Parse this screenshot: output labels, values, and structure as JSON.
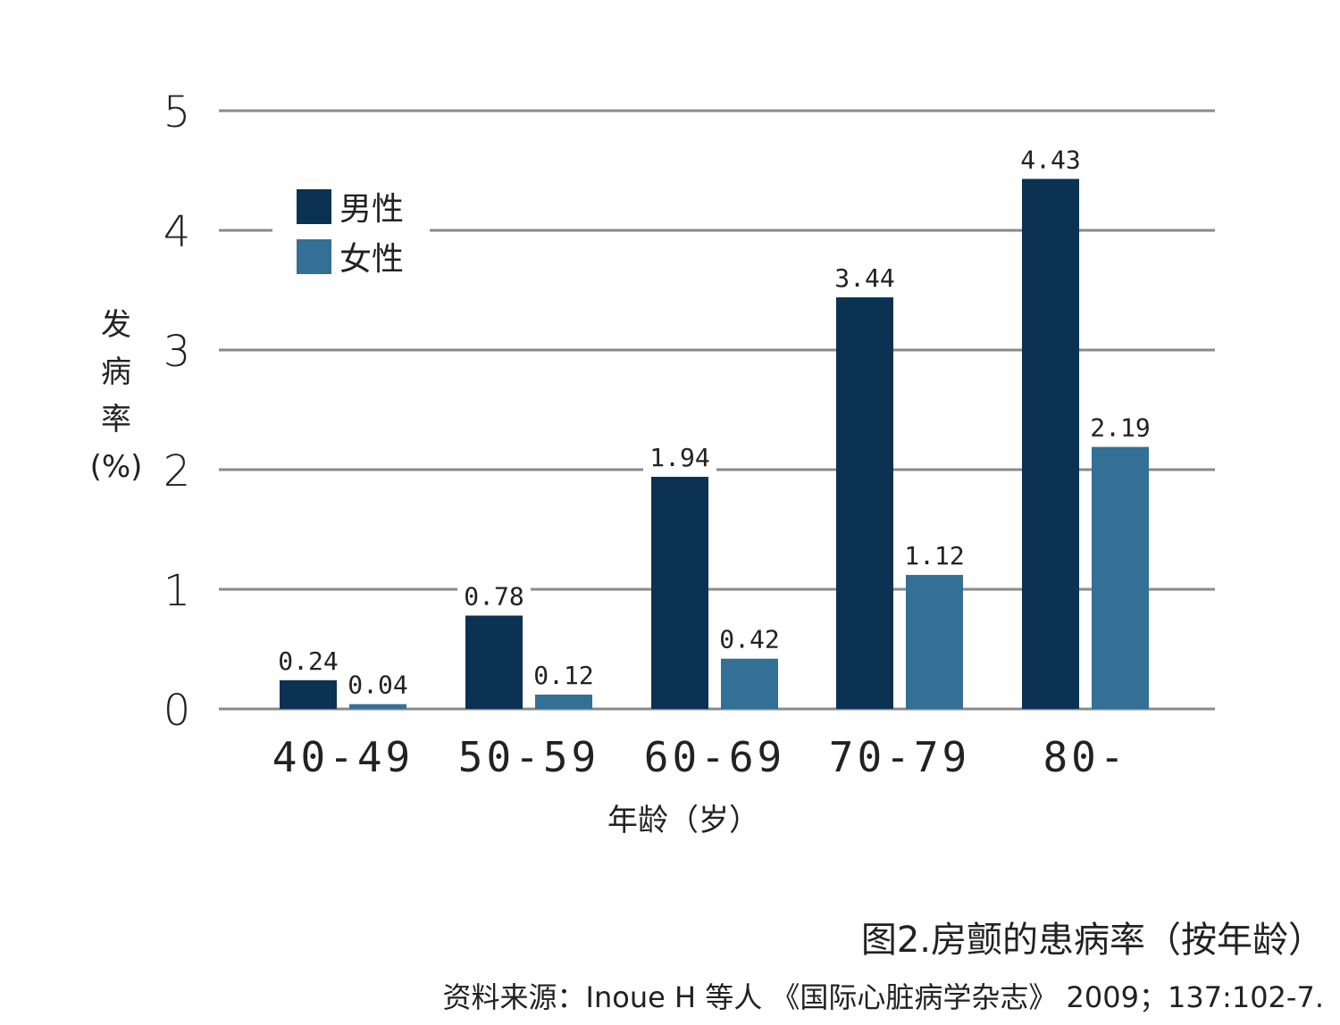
{
  "chart_data": {
    "type": "bar",
    "categories": [
      "40-49",
      "50-59",
      "60-69",
      "70-79",
      "80-"
    ],
    "series": [
      {
        "name": "男性",
        "values": [
          0.24,
          0.78,
          1.94,
          3.44,
          4.43
        ],
        "color": "#0b3253"
      },
      {
        "name": "女性",
        "values": [
          0.04,
          0.12,
          0.42,
          1.12,
          2.19
        ],
        "color": "#346f96"
      }
    ],
    "value_labels": {
      "男性": [
        "0.24",
        "0.78",
        "1.94",
        "3.44",
        "4.43"
      ],
      "女性": [
        "0.04",
        "0.12",
        "0.42",
        "1.12",
        "2.19"
      ]
    },
    "ylim": [
      0,
      5
    ],
    "yticks": [
      "0",
      "1",
      "2",
      "3",
      "4",
      "5"
    ],
    "ylabel": [
      "发",
      "病",
      "率",
      "(%)"
    ],
    "xlabel": "年龄（岁）",
    "grid": true,
    "grid_color": "#8a8a8a",
    "legend_position": "top-left"
  },
  "caption": "图2.房颤的患病率（按年龄）",
  "source": "资料来源：Inoue H  等人 《国际心脏病学杂志》 2009；137:102-7."
}
